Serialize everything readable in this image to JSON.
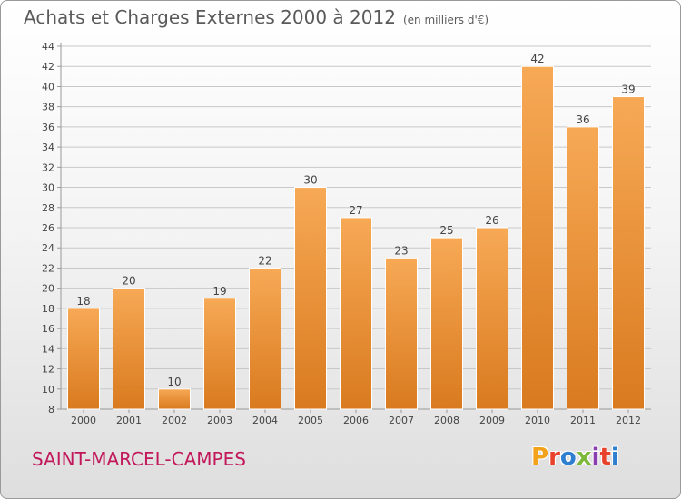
{
  "header": {
    "title": "Achats et Charges Externes 2000 à 2012",
    "unit": "(en milliers d'€)"
  },
  "footer": {
    "commune": "SAINT-MARCEL-CAMPES"
  },
  "brand": {
    "text": "Proxiti",
    "letter_colors": [
      "#f2a21b",
      "#e8432a",
      "#2f7fd0",
      "#7cb83a",
      "#8a3fb0",
      "#e8432a",
      "#2f7fd0"
    ]
  },
  "colors": {
    "bar_light": "#f7a955",
    "bar_dark": "#d97a1f",
    "grid": "#c8c8c8",
    "axis": "#999999",
    "text": "#444444",
    "commune": "#c2185b"
  },
  "chart_data": {
    "type": "bar",
    "title": "Achats et Charges Externes 2000 à 2012",
    "subtitle": "(en milliers d'€)",
    "xlabel": "",
    "ylabel": "",
    "categories": [
      "2000",
      "2001",
      "2002",
      "2003",
      "2004",
      "2005",
      "2006",
      "2007",
      "2008",
      "2009",
      "2010",
      "2011",
      "2012"
    ],
    "values": [
      18,
      20,
      10,
      19,
      22,
      30,
      27,
      23,
      25,
      26,
      42,
      36,
      39
    ],
    "data_labels": [
      "18",
      "20",
      "10",
      "19",
      "22",
      "30",
      "27",
      "23",
      "25",
      "26",
      "42",
      "36",
      "39"
    ],
    "ylim": [
      8,
      44
    ],
    "yticks": [
      8,
      10,
      12,
      14,
      16,
      18,
      20,
      22,
      24,
      26,
      28,
      30,
      32,
      34,
      36,
      38,
      40,
      42,
      44
    ],
    "grid": true
  }
}
